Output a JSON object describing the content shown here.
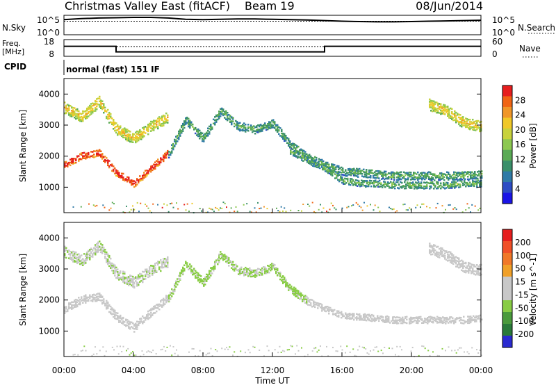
{
  "header": {
    "station": "Christmas Valley East (fitACF)",
    "beam": "Beam 19",
    "date": "08/Jun/2014"
  },
  "top_panels": {
    "nsky_label": "N.Sky",
    "nsky_ticks": [
      "10^5",
      "10^0"
    ],
    "nsearch_label": "N.Search",
    "nsearch_ticks": [
      "10^5",
      "10^0"
    ],
    "freq_label": "Freq.",
    "freq_unit": "[MHz]",
    "freq_ticks": [
      "18",
      "8"
    ],
    "nave_label": "Nave",
    "nave_ticks": [
      "60",
      "0"
    ],
    "cpid_label": "CPID",
    "cpid_value": "normal (fast) 151 IF"
  },
  "colors": {
    "power_scale": [
      "#1a14e6",
      "#2d4cc4",
      "#2f7aa6",
      "#3a8f6a",
      "#5aaa55",
      "#8cc850",
      "#c8d23c",
      "#f0c828",
      "#f09628",
      "#f06414",
      "#e61e1e"
    ],
    "velocity_scale": [
      "#2a2ad0",
      "#2a7a3a",
      "#4a9a3c",
      "#88cc44",
      "#c8c8c8",
      "#c8c8c8",
      "#f0a028",
      "#f07828",
      "#f05028",
      "#e61e1e"
    ]
  },
  "chart_data": [
    {
      "type": "line",
      "name": "nsky-nsearch",
      "x_unit": "hours UT",
      "series": [
        {
          "name": "N.Sky",
          "x": [
            0,
            1,
            2,
            3,
            4,
            5,
            6,
            7,
            8,
            9,
            10,
            11,
            12,
            13,
            14,
            15,
            16,
            17,
            18,
            19,
            20,
            21,
            22,
            23,
            24
          ],
          "values": [
            4.3,
            4.6,
            4.8,
            4.9,
            5.0,
            5.0,
            4.8,
            4.4,
            4.3,
            4.4,
            4.5,
            4.5,
            4.4,
            4.3,
            4.2,
            4.0,
            3.8,
            3.7,
            3.6,
            3.6,
            3.7,
            3.8,
            3.9,
            4.0,
            4.1
          ]
        },
        {
          "name": "N.Search",
          "x": [
            0,
            6,
            12,
            18,
            24
          ],
          "values": [
            3.8,
            3.8,
            3.8,
            3.8,
            3.8
          ]
        }
      ],
      "ylim": [
        0,
        5
      ]
    },
    {
      "type": "line",
      "name": "freq-nave",
      "x_unit": "hours UT",
      "series": [
        {
          "name": "Freq.",
          "x": [
            0,
            3.0,
            3.0,
            15.0,
            15.0,
            24
          ],
          "values": [
            14.2,
            14.2,
            10.2,
            10.2,
            14.2,
            14.2
          ]
        },
        {
          "name": "Nave",
          "x": [
            0,
            24
          ],
          "values": [
            14,
            14
          ]
        }
      ],
      "ylim": [
        8,
        18
      ]
    },
    {
      "type": "heatmap",
      "name": "power",
      "x_unit": "hours UT",
      "xlim": [
        0,
        24
      ],
      "xticks": [
        "00:00",
        "04:00",
        "08:00",
        "12:00",
        "16:00",
        "20:00",
        "00:00"
      ],
      "ylim": [
        180,
        4500
      ],
      "yticks": [
        "1000",
        "2000",
        "3000",
        "4000"
      ],
      "ylabel": "Slant Range [km]",
      "colorbar_label": "Power [dB]",
      "colorbar_ticks": [
        "28",
        "24",
        "20",
        "16",
        "12",
        "8",
        "4"
      ],
      "vlim": [
        0,
        30
      ],
      "features": [
        {
          "x": [
            0,
            1,
            2,
            3,
            4,
            5,
            6
          ],
          "y": [
            1750,
            2050,
            2150,
            1500,
            1150,
            1650,
            2150
          ],
          "width_km": 220,
          "power": 27
        },
        {
          "x": [
            0,
            1,
            2,
            3,
            4,
            5,
            6
          ],
          "y": [
            3600,
            3300,
            3800,
            2900,
            2600,
            3000,
            3300
          ],
          "width_km": 350,
          "power": 18
        },
        {
          "x": [
            6,
            7,
            8,
            9,
            10,
            11,
            12,
            13,
            14,
            15,
            16,
            17,
            18,
            19,
            20,
            21,
            22,
            23,
            24
          ],
          "y": [
            2100,
            3200,
            2600,
            3500,
            3000,
            2900,
            3100,
            2400,
            2000,
            1750,
            1550,
            1500,
            1450,
            1400,
            1400,
            1400,
            1400,
            1400,
            1450
          ],
          "width_km": 260,
          "power": 10
        },
        {
          "x": [
            13,
            14,
            15,
            16,
            17,
            18,
            19,
            20,
            21,
            22,
            23,
            24
          ],
          "y": [
            2200,
            1900,
            1650,
            1250,
            1150,
            1150,
            1100,
            1100,
            1100,
            1100,
            1150,
            1150
          ],
          "width_km": 200,
          "power": 11
        },
        {
          "x": [
            21,
            22,
            23,
            24
          ],
          "y": [
            3700,
            3500,
            3100,
            3000
          ],
          "width_km": 350,
          "power": 18
        }
      ]
    },
    {
      "type": "heatmap",
      "name": "velocity",
      "x_unit": "hours UT",
      "xlim": [
        0,
        24
      ],
      "xticks": [
        "00:00",
        "04:00",
        "08:00",
        "12:00",
        "16:00",
        "20:00",
        "00:00"
      ],
      "xlabel": "Time UT",
      "ylim": [
        180,
        4500
      ],
      "yticks": [
        "1000",
        "2000",
        "3000",
        "4000"
      ],
      "ylabel": "Slant Range [km]",
      "colorbar_label": "Velocity [m s^-1]",
      "colorbar_ticks": [
        "200",
        "100",
        "50",
        "15",
        "-15",
        "-50",
        "-100",
        "-200"
      ],
      "vlim": [
        -250,
        250
      ],
      "features": [
        {
          "x": [
            0,
            1,
            2,
            3,
            4,
            5,
            6
          ],
          "y": [
            1750,
            2050,
            2150,
            1500,
            1150,
            1650,
            2150
          ],
          "width_km": 260,
          "velocity": 0
        },
        {
          "x": [
            0,
            1,
            2,
            3,
            4,
            5,
            6
          ],
          "y": [
            3600,
            3300,
            3800,
            2900,
            2600,
            3000,
            3300
          ],
          "width_km": 350,
          "velocity": -40
        },
        {
          "x": [
            6,
            7,
            8,
            9,
            10,
            11,
            12,
            13,
            14
          ],
          "y": [
            2100,
            3200,
            2600,
            3500,
            3000,
            2900,
            3100,
            2400,
            2000
          ],
          "width_km": 260,
          "velocity": -60
        },
        {
          "x": [
            14,
            15,
            16,
            17,
            18,
            19,
            20,
            21,
            22,
            23,
            24
          ],
          "y": [
            2000,
            1750,
            1550,
            1500,
            1450,
            1400,
            1400,
            1400,
            1400,
            1400,
            1450
          ],
          "width_km": 220,
          "velocity": 0
        },
        {
          "x": [
            21,
            22,
            23,
            24
          ],
          "y": [
            3700,
            3500,
            3100,
            3000
          ],
          "width_km": 350,
          "velocity": 0
        }
      ]
    }
  ]
}
